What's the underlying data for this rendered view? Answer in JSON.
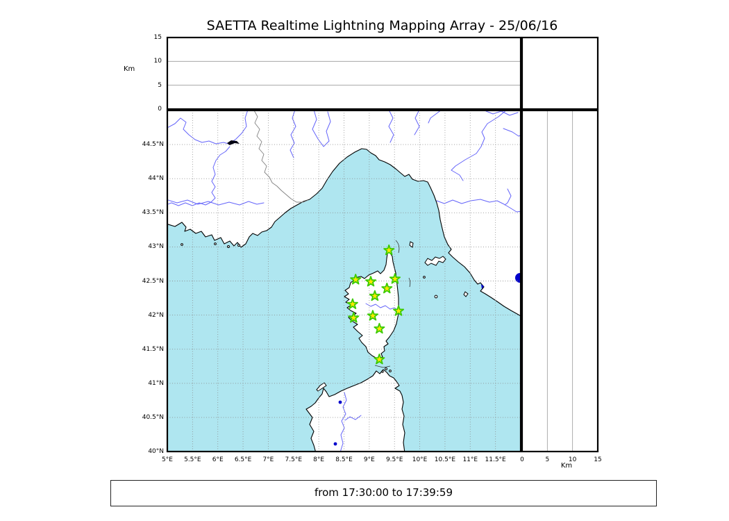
{
  "title": "SAETTA Realtime Lightning Mapping Array - 25/06/16",
  "footer": {
    "text": "from 17:30:00 to 17:39:59"
  },
  "alt_axis": {
    "label": "Km",
    "ticks": [
      {
        "v": 0,
        "label": "0"
      },
      {
        "v": 5,
        "label": "5"
      },
      {
        "v": 10,
        "label": "10"
      },
      {
        "v": 15,
        "label": "15"
      }
    ],
    "gridlines": [
      5,
      10
    ],
    "range_km": [
      0,
      15
    ]
  },
  "dist_axis": {
    "label": "Km",
    "ticks": [
      {
        "v": 0,
        "label": "0"
      },
      {
        "v": 5,
        "label": "5"
      },
      {
        "v": 10,
        "label": "10"
      },
      {
        "v": 15,
        "label": "15"
      }
    ],
    "gridlines": [
      5,
      10
    ],
    "range_km": [
      0,
      15
    ]
  },
  "map": {
    "lon_min": 5,
    "lon_max": 12,
    "lat_min": 40,
    "lat_max": 45,
    "lon_ticks": [
      {
        "v": 5,
        "label": "5°E"
      },
      {
        "v": 5.5,
        "label": "5.5°E"
      },
      {
        "v": 6,
        "label": "6°E"
      },
      {
        "v": 6.5,
        "label": "6.5°E"
      },
      {
        "v": 7,
        "label": "7°E"
      },
      {
        "v": 7.5,
        "label": "7.5°E"
      },
      {
        "v": 8,
        "label": "8°E"
      },
      {
        "v": 8.5,
        "label": "8.5°E"
      },
      {
        "v": 9,
        "label": "9°E"
      },
      {
        "v": 9.5,
        "label": "9.5°E"
      },
      {
        "v": 10,
        "label": "10°E"
      },
      {
        "v": 10.5,
        "label": "10.5°E"
      },
      {
        "v": 11,
        "label": "11°E"
      },
      {
        "v": 11.5,
        "label": "11.5°E"
      }
    ],
    "lat_ticks": [
      {
        "v": 40,
        "label": "40°N"
      },
      {
        "v": 40.5,
        "label": "40.5°N"
      },
      {
        "v": 41,
        "label": "41°N"
      },
      {
        "v": 41.5,
        "label": "41.5°N"
      },
      {
        "v": 42,
        "label": "42°N"
      },
      {
        "v": 42.5,
        "label": "42.5°N"
      },
      {
        "v": 43,
        "label": "43°N"
      },
      {
        "v": 43.5,
        "label": "43.5°N"
      },
      {
        "v": 44,
        "label": "44°N"
      },
      {
        "v": 44.5,
        "label": "44.5°N"
      }
    ],
    "lon_gridlines": [
      5.5,
      6,
      6.5,
      7,
      7.5,
      8,
      8.5,
      9,
      9.5,
      10,
      10.5,
      11,
      11.5
    ],
    "lat_gridlines": [
      40.5,
      41,
      41.5,
      42,
      42.5,
      43,
      43.5,
      44,
      44.5
    ]
  },
  "stations": [
    {
      "lon": 9.39,
      "lat": 42.95
    },
    {
      "lon": 8.73,
      "lat": 42.52
    },
    {
      "lon": 9.03,
      "lat": 42.49
    },
    {
      "lon": 9.51,
      "lat": 42.53
    },
    {
      "lon": 9.35,
      "lat": 42.39
    },
    {
      "lon": 9.11,
      "lat": 42.28
    },
    {
      "lon": 8.67,
      "lat": 42.16
    },
    {
      "lon": 9.58,
      "lat": 42.06
    },
    {
      "lon": 9.07,
      "lat": 41.99
    },
    {
      "lon": 8.69,
      "lat": 41.96
    },
    {
      "lon": 9.2,
      "lat": 41.8
    },
    {
      "lon": 9.2,
      "lat": 41.35
    }
  ],
  "chart_data": {
    "type": "map",
    "title": "SAETTA Realtime Lightning Mapping Array - 25/06/16",
    "time_window": "from 17:30:00 to 17:39:59",
    "map_extent": {
      "lon_min": 5,
      "lon_max": 12,
      "lat_min": 40,
      "lat_max": 45
    },
    "altitude_panels": {
      "range_km": [
        0,
        15
      ],
      "ticks": [
        0,
        5,
        10,
        15
      ],
      "lightning_points": []
    },
    "station_markers_lon_lat": [
      [
        9.39,
        42.95
      ],
      [
        8.73,
        42.52
      ],
      [
        9.03,
        42.49
      ],
      [
        9.51,
        42.53
      ],
      [
        9.35,
        42.39
      ],
      [
        9.11,
        42.28
      ],
      [
        8.67,
        42.16
      ],
      [
        9.58,
        42.06
      ],
      [
        9.07,
        41.99
      ],
      [
        8.69,
        41.96
      ],
      [
        9.2,
        41.8
      ],
      [
        9.2,
        41.35
      ]
    ]
  },
  "colors": {
    "sea": "#afe6f0",
    "land": "#ffffff",
    "coast": "#000000",
    "river": "#6464fa",
    "country_border": "#808080",
    "grid": "#888888",
    "panel_border": "#000000",
    "star_fill": "#ffe800",
    "star_edge": "#3bcb00",
    "lake_dark": "#0000cc",
    "lake_black": "#000011"
  }
}
